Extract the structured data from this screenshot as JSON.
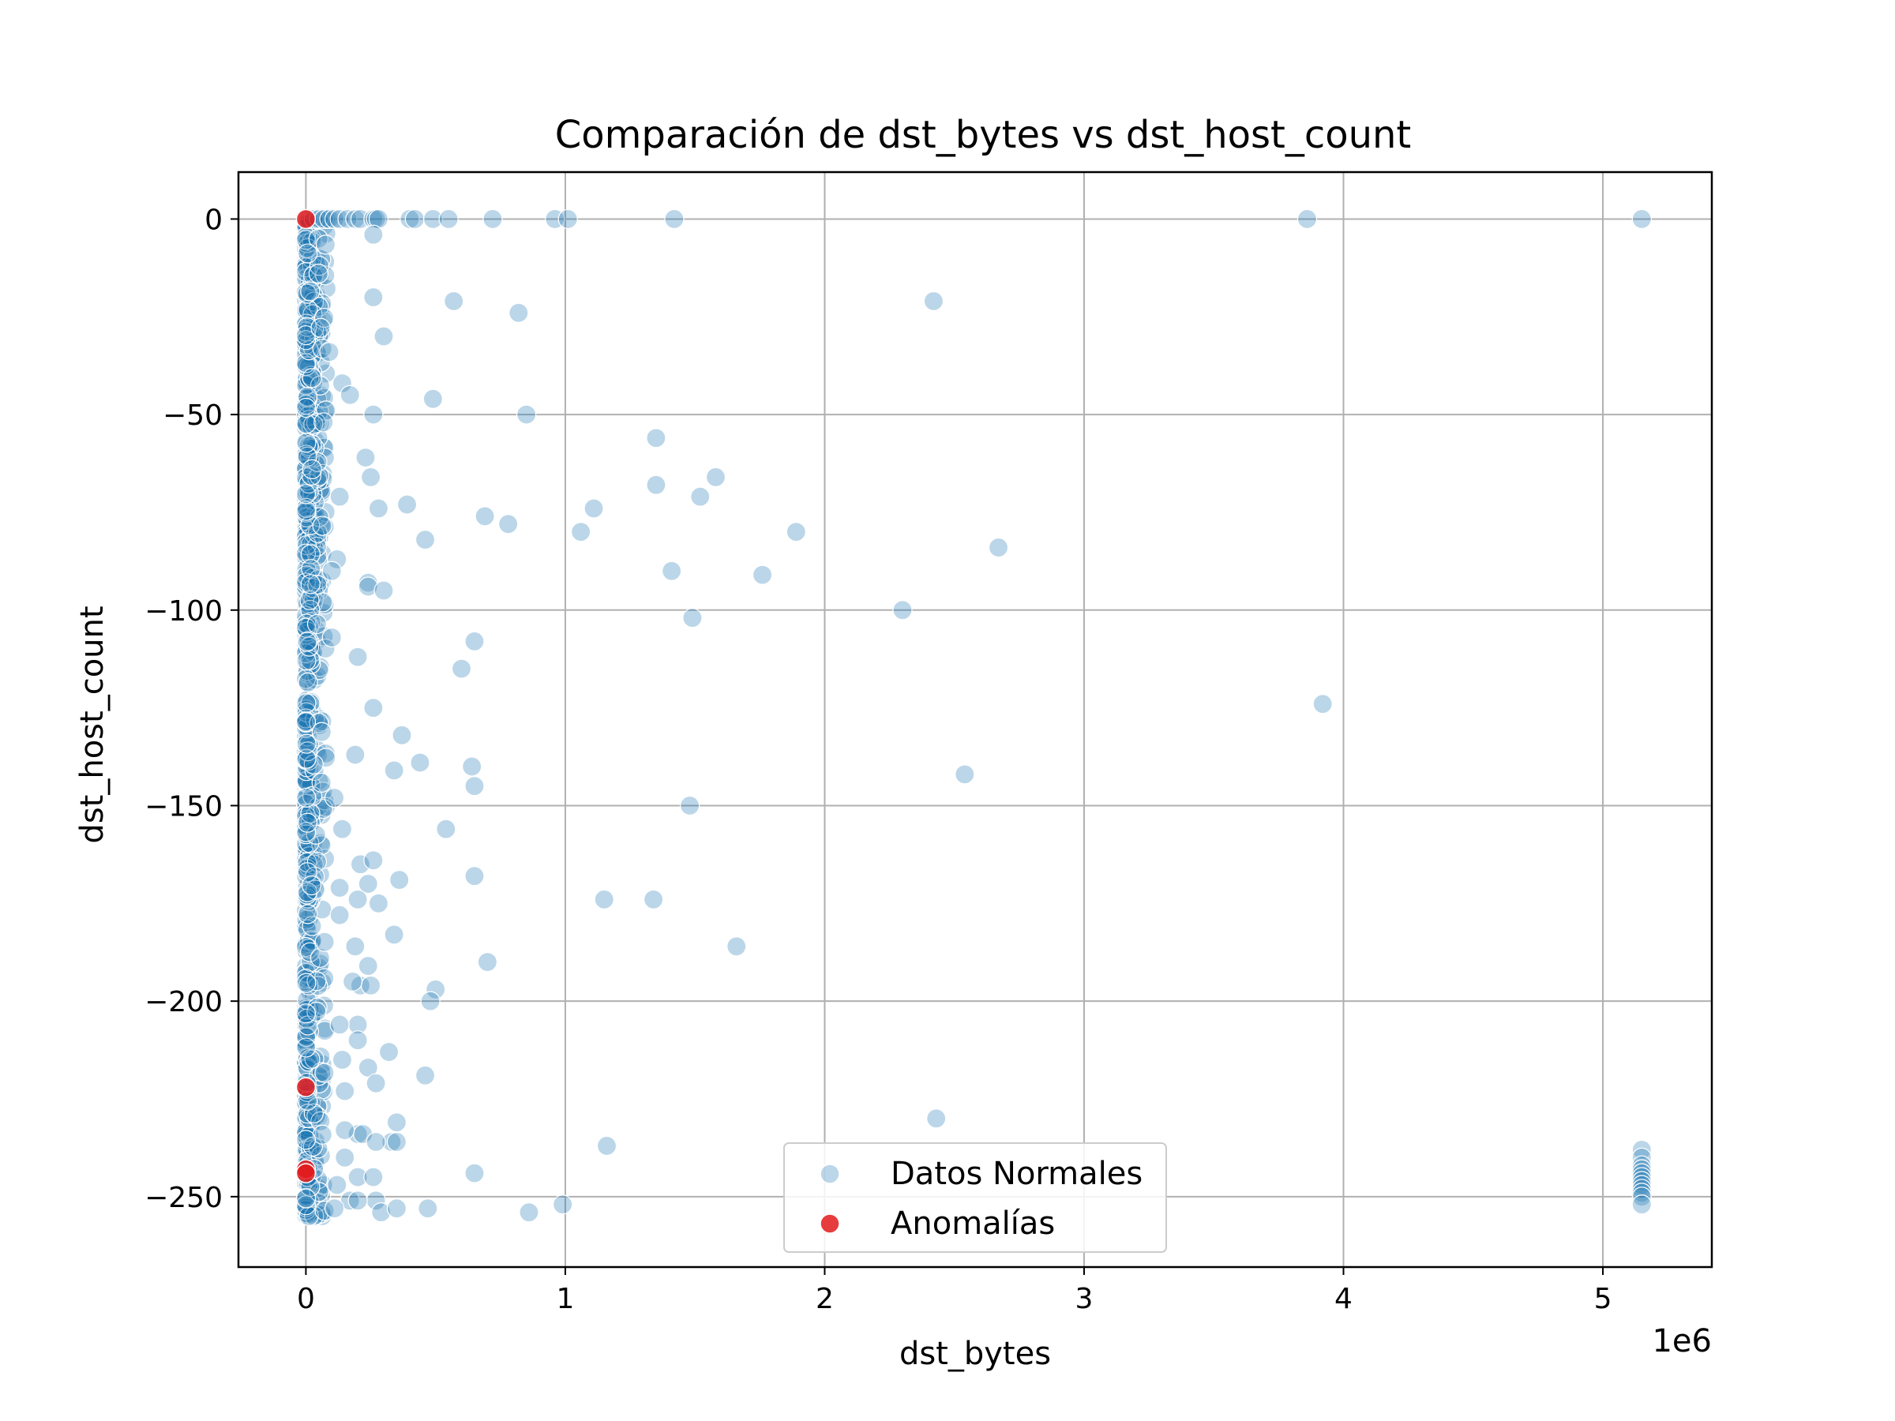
{
  "chart_data": {
    "type": "scatter",
    "title": "Comparación de dst_bytes vs dst_host_count",
    "xlabel": "dst_bytes",
    "ylabel": "dst_host_count",
    "x_offset_label": "1e6",
    "xlim": [
      -260000,
      5420000
    ],
    "ylim": [
      -268,
      12
    ],
    "x_ticks": [
      0,
      1000000,
      2000000,
      3000000,
      4000000,
      5000000
    ],
    "x_tick_labels": [
      "0",
      "1",
      "2",
      "3",
      "4",
      "5"
    ],
    "y_ticks": [
      0,
      -50,
      -100,
      -150,
      -200,
      -250
    ],
    "y_tick_labels": [
      "0",
      "−50",
      "−100",
      "−150",
      "−200",
      "−250"
    ],
    "grid": true,
    "legend_position": "lower center",
    "colors": {
      "normal": "#1f77b4",
      "anomaly": "#e31a1c"
    },
    "series": [
      {
        "name": "Datos Normales",
        "dense_cluster": {
          "x_max": 80000,
          "y_range": [
            -255,
            0
          ]
        },
        "points": [
          [
            10000,
            0
          ],
          [
            30000,
            0
          ],
          [
            50000,
            0
          ],
          [
            70000,
            0
          ],
          [
            90000,
            0
          ],
          [
            110000,
            0
          ],
          [
            130000,
            0
          ],
          [
            160000,
            0
          ],
          [
            190000,
            0
          ],
          [
            210000,
            0
          ],
          [
            260000,
            0
          ],
          [
            270000,
            0
          ],
          [
            280000,
            0
          ],
          [
            400000,
            0
          ],
          [
            420000,
            0
          ],
          [
            490000,
            0
          ],
          [
            550000,
            0
          ],
          [
            720000,
            0
          ],
          [
            960000,
            0
          ],
          [
            1010000,
            0
          ],
          [
            1420000,
            0
          ],
          [
            3860000,
            0
          ],
          [
            5150000,
            0
          ],
          [
            260000,
            -4
          ],
          [
            260000,
            -20
          ],
          [
            570000,
            -21
          ],
          [
            2420000,
            -21
          ],
          [
            820000,
            -24
          ],
          [
            300000,
            -30
          ],
          [
            90000,
            -34
          ],
          [
            140000,
            -42
          ],
          [
            170000,
            -45
          ],
          [
            490000,
            -46
          ],
          [
            260000,
            -50
          ],
          [
            850000,
            -50
          ],
          [
            1350000,
            -56
          ],
          [
            230000,
            -61
          ],
          [
            250000,
            -66
          ],
          [
            1580000,
            -66
          ],
          [
            1350000,
            -68
          ],
          [
            1520000,
            -71
          ],
          [
            130000,
            -71
          ],
          [
            390000,
            -73
          ],
          [
            280000,
            -74
          ],
          [
            1110000,
            -74
          ],
          [
            690000,
            -76
          ],
          [
            780000,
            -78
          ],
          [
            1060000,
            -80
          ],
          [
            1890000,
            -80
          ],
          [
            460000,
            -82
          ],
          [
            2670000,
            -84
          ],
          [
            120000,
            -87
          ],
          [
            100000,
            -90
          ],
          [
            1410000,
            -90
          ],
          [
            1760000,
            -91
          ],
          [
            240000,
            -93
          ],
          [
            240000,
            -94
          ],
          [
            300000,
            -95
          ],
          [
            2300000,
            -100
          ],
          [
            1490000,
            -102
          ],
          [
            100000,
            -107
          ],
          [
            650000,
            -108
          ],
          [
            200000,
            -112
          ],
          [
            600000,
            -115
          ],
          [
            3920000,
            -124
          ],
          [
            260000,
            -125
          ],
          [
            370000,
            -132
          ],
          [
            190000,
            -137
          ],
          [
            440000,
            -139
          ],
          [
            640000,
            -140
          ],
          [
            340000,
            -141
          ],
          [
            2540000,
            -142
          ],
          [
            650000,
            -145
          ],
          [
            1480000,
            -150
          ],
          [
            110000,
            -148
          ],
          [
            540000,
            -156
          ],
          [
            140000,
            -156
          ],
          [
            210000,
            -165
          ],
          [
            260000,
            -164
          ],
          [
            650000,
            -168
          ],
          [
            360000,
            -169
          ],
          [
            240000,
            -170
          ],
          [
            130000,
            -171
          ],
          [
            1150000,
            -174
          ],
          [
            1340000,
            -174
          ],
          [
            200000,
            -174
          ],
          [
            280000,
            -175
          ],
          [
            130000,
            -178
          ],
          [
            340000,
            -183
          ],
          [
            1660000,
            -186
          ],
          [
            190000,
            -186
          ],
          [
            700000,
            -190
          ],
          [
            240000,
            -191
          ],
          [
            500000,
            -197
          ],
          [
            480000,
            -200
          ],
          [
            210000,
            -196
          ],
          [
            250000,
            -196
          ],
          [
            180000,
            -195
          ],
          [
            200000,
            -206
          ],
          [
            130000,
            -206
          ],
          [
            200000,
            -210
          ],
          [
            320000,
            -213
          ],
          [
            140000,
            -215
          ],
          [
            240000,
            -217
          ],
          [
            460000,
            -219
          ],
          [
            270000,
            -221
          ],
          [
            150000,
            -223
          ],
          [
            2430000,
            -230
          ],
          [
            350000,
            -231
          ],
          [
            200000,
            -234
          ],
          [
            220000,
            -234
          ],
          [
            150000,
            -233
          ],
          [
            1160000,
            -237
          ],
          [
            330000,
            -236
          ],
          [
            350000,
            -236
          ],
          [
            270000,
            -236
          ],
          [
            650000,
            -244
          ],
          [
            200000,
            -245
          ],
          [
            260000,
            -245
          ],
          [
            150000,
            -240
          ],
          [
            120000,
            -247
          ],
          [
            170000,
            -251
          ],
          [
            270000,
            -251
          ],
          [
            200000,
            -251
          ],
          [
            290000,
            -254
          ],
          [
            350000,
            -253
          ],
          [
            470000,
            -253
          ],
          [
            860000,
            -254
          ],
          [
            990000,
            -252
          ],
          [
            110000,
            -253
          ],
          [
            5150000,
            -238
          ],
          [
            5150000,
            -240
          ],
          [
            5150000,
            -242
          ],
          [
            5150000,
            -243
          ],
          [
            5150000,
            -244
          ],
          [
            5150000,
            -245
          ],
          [
            5150000,
            -246
          ],
          [
            5150000,
            -247
          ],
          [
            5150000,
            -248
          ],
          [
            5150000,
            -249
          ],
          [
            5150000,
            -250
          ],
          [
            5150000,
            -252
          ]
        ]
      },
      {
        "name": "Anomalías",
        "points": [
          [
            0,
            0
          ],
          [
            0,
            -222
          ],
          [
            0,
            -243
          ],
          [
            0,
            -244
          ]
        ]
      }
    ]
  }
}
